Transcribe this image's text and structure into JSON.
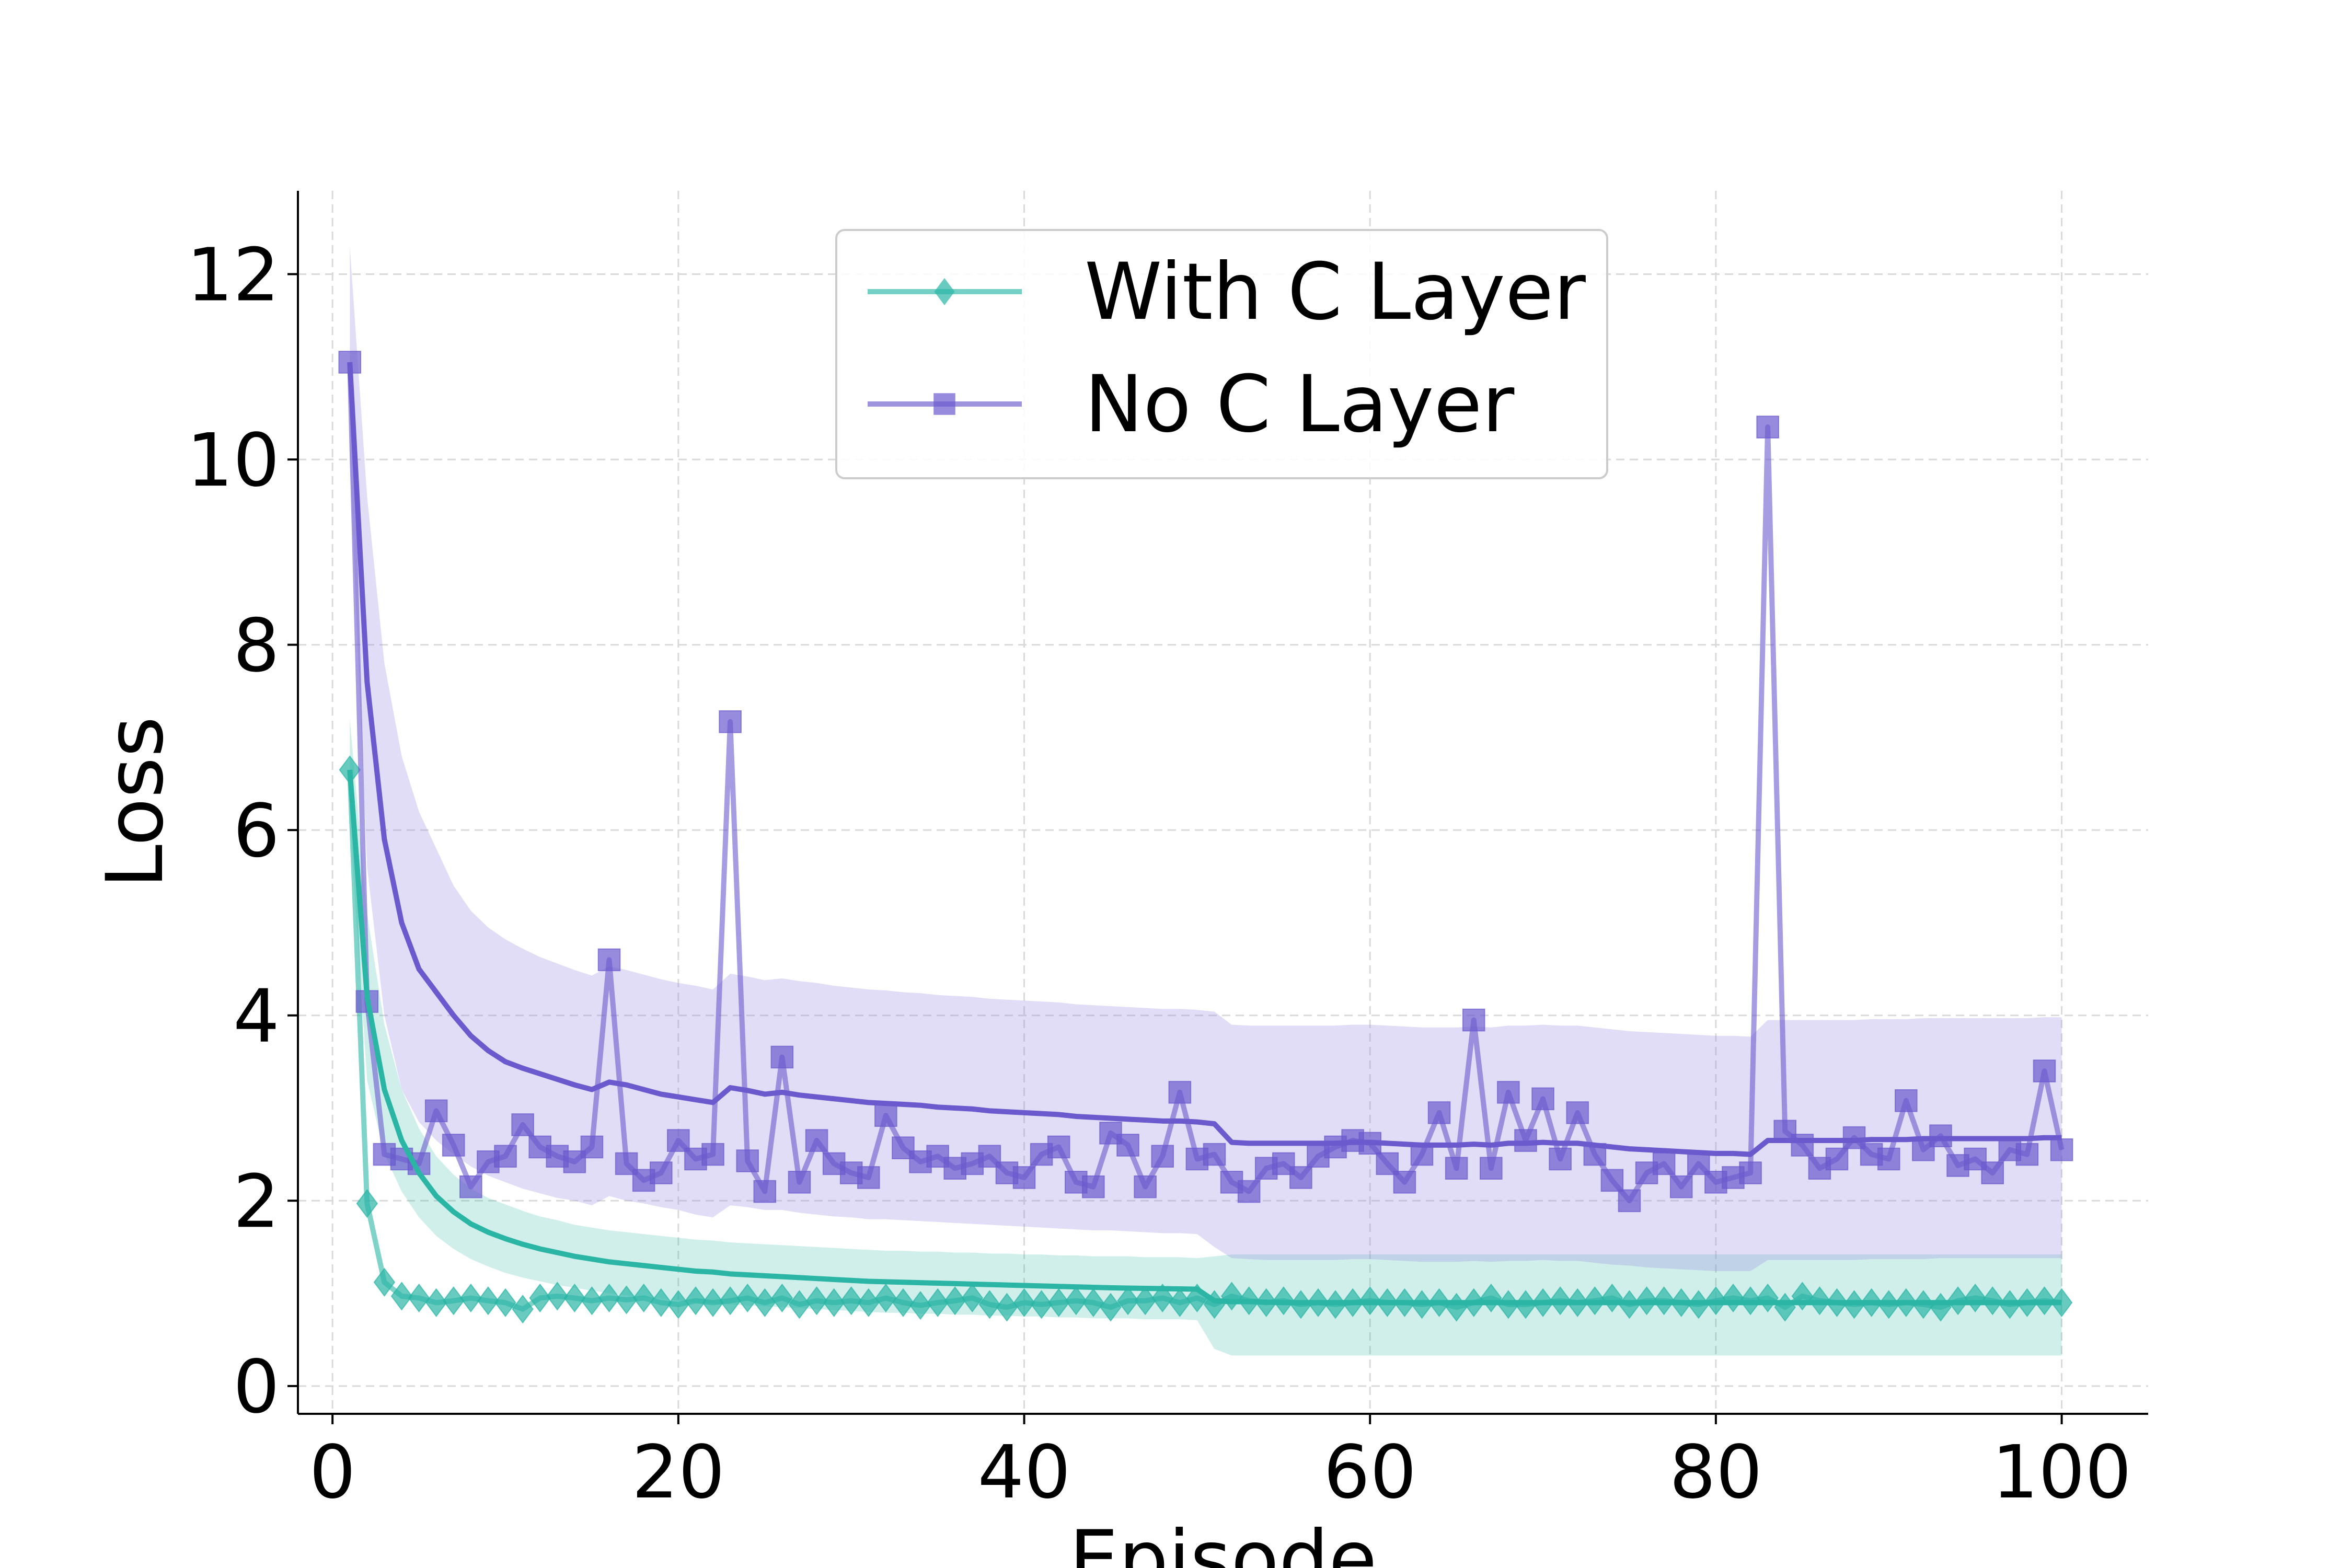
{
  "chart_data": {
    "type": "line",
    "title": "",
    "xlabel": "Episode",
    "ylabel": "Loss",
    "xlim": [
      -2,
      105
    ],
    "ylim": [
      -0.3,
      12.9
    ],
    "xticks": [
      0,
      20,
      40,
      60,
      80,
      100
    ],
    "yticks": [
      0,
      2,
      4,
      6,
      8,
      10,
      12
    ],
    "grid": true,
    "legend_position": "top-center",
    "colors": {
      "with_c": "#2ab5a5",
      "no_c": "#6a5acd",
      "with_c_band": "#2ab5a5",
      "no_c_band": "#9b8fe0"
    },
    "series": [
      {
        "name": "With C Layer",
        "marker": "diamond",
        "x": [
          1,
          2,
          3,
          4,
          5,
          6,
          7,
          8,
          9,
          10,
          11,
          12,
          13,
          14,
          15,
          16,
          17,
          18,
          19,
          20,
          21,
          22,
          23,
          24,
          25,
          26,
          27,
          28,
          29,
          30,
          31,
          32,
          33,
          34,
          35,
          36,
          37,
          38,
          39,
          40,
          41,
          42,
          43,
          44,
          45,
          46,
          47,
          48,
          49,
          50,
          51,
          52,
          53,
          54,
          55,
          56,
          57,
          58,
          59,
          60,
          61,
          62,
          63,
          64,
          65,
          66,
          67,
          68,
          69,
          70,
          71,
          72,
          73,
          74,
          75,
          76,
          77,
          78,
          79,
          80,
          81,
          82,
          83,
          84,
          85,
          86,
          87,
          88,
          89,
          90,
          91,
          92,
          93,
          94,
          95,
          96,
          97,
          98,
          99,
          100
        ],
        "values": [
          6.65,
          1.97,
          1.12,
          0.97,
          0.95,
          0.9,
          0.92,
          0.95,
          0.92,
          0.9,
          0.83,
          0.95,
          0.97,
          0.95,
          0.92,
          0.95,
          0.93,
          0.95,
          0.9,
          0.88,
          0.92,
          0.9,
          0.92,
          0.95,
          0.9,
          0.95,
          0.88,
          0.92,
          0.9,
          0.92,
          0.9,
          0.95,
          0.9,
          0.87,
          0.9,
          0.92,
          0.95,
          0.88,
          0.85,
          0.9,
          0.88,
          0.9,
          0.92,
          0.9,
          0.85,
          0.92,
          0.92,
          0.95,
          0.9,
          0.95,
          0.88,
          0.97,
          0.92,
          0.9,
          0.92,
          0.88,
          0.9,
          0.88,
          0.9,
          0.92,
          0.9,
          0.9,
          0.88,
          0.9,
          0.85,
          0.9,
          0.95,
          0.88,
          0.88,
          0.9,
          0.92,
          0.9,
          0.92,
          0.95,
          0.88,
          0.92,
          0.92,
          0.9,
          0.88,
          0.92,
          0.95,
          0.92,
          0.95,
          0.85,
          0.97,
          0.92,
          0.9,
          0.88,
          0.9,
          0.88,
          0.9,
          0.88,
          0.85,
          0.92,
          0.95,
          0.92,
          0.88,
          0.9,
          0.92,
          0.9
        ],
        "smoothed": [
          6.65,
          4.2,
          3.2,
          2.65,
          2.3,
          2.05,
          1.88,
          1.75,
          1.66,
          1.59,
          1.53,
          1.48,
          1.44,
          1.4,
          1.37,
          1.34,
          1.32,
          1.3,
          1.28,
          1.26,
          1.24,
          1.23,
          1.21,
          1.2,
          1.19,
          1.18,
          1.17,
          1.16,
          1.15,
          1.14,
          1.13,
          1.125,
          1.12,
          1.115,
          1.11,
          1.105,
          1.1,
          1.095,
          1.09,
          1.085,
          1.08,
          1.075,
          1.07,
          1.065,
          1.06,
          1.057,
          1.054,
          1.051,
          1.048,
          1.045,
          0.92,
          0.91,
          0.91,
          0.905,
          0.9,
          0.9,
          0.9,
          0.9,
          0.9,
          0.9,
          0.9,
          0.9,
          0.9,
          0.9,
          0.9,
          0.9,
          0.9,
          0.9,
          0.9,
          0.9,
          0.9,
          0.9,
          0.9,
          0.9,
          0.9,
          0.9,
          0.9,
          0.9,
          0.9,
          0.9,
          0.9,
          0.9,
          0.9,
          0.9,
          0.9,
          0.9,
          0.9,
          0.9,
          0.9,
          0.9,
          0.9,
          0.9,
          0.9,
          0.9,
          0.9,
          0.9,
          0.9,
          0.9,
          0.9,
          0.9
        ],
        "band_lower": [
          6.1,
          3.3,
          2.5,
          2.1,
          1.82,
          1.62,
          1.48,
          1.37,
          1.29,
          1.22,
          1.17,
          1.13,
          1.09,
          1.06,
          1.03,
          1.0,
          0.98,
          0.96,
          0.94,
          0.92,
          0.9,
          0.89,
          0.88,
          0.87,
          0.86,
          0.85,
          0.84,
          0.83,
          0.82,
          0.81,
          0.8,
          0.79,
          0.79,
          0.78,
          0.78,
          0.77,
          0.77,
          0.76,
          0.76,
          0.75,
          0.75,
          0.74,
          0.74,
          0.73,
          0.73,
          0.73,
          0.72,
          0.72,
          0.72,
          0.71,
          0.4,
          0.33,
          0.33,
          0.33,
          0.33,
          0.33,
          0.33,
          0.33,
          0.33,
          0.33,
          0.33,
          0.33,
          0.33,
          0.33,
          0.33,
          0.33,
          0.33,
          0.33,
          0.33,
          0.33,
          0.33,
          0.33,
          0.33,
          0.33,
          0.33,
          0.33,
          0.33,
          0.33,
          0.33,
          0.33,
          0.33,
          0.33,
          0.33,
          0.33,
          0.33,
          0.33,
          0.33,
          0.33,
          0.33,
          0.33,
          0.33,
          0.33,
          0.33,
          0.33,
          0.33,
          0.33,
          0.33,
          0.33,
          0.33,
          0.33
        ],
        "band_upper": [
          7.2,
          5.1,
          3.9,
          3.2,
          2.78,
          2.48,
          2.28,
          2.13,
          2.03,
          1.96,
          1.89,
          1.83,
          1.79,
          1.74,
          1.71,
          1.68,
          1.66,
          1.64,
          1.62,
          1.6,
          1.58,
          1.57,
          1.55,
          1.54,
          1.53,
          1.52,
          1.51,
          1.5,
          1.49,
          1.48,
          1.47,
          1.46,
          1.46,
          1.45,
          1.45,
          1.44,
          1.44,
          1.43,
          1.43,
          1.42,
          1.42,
          1.41,
          1.41,
          1.4,
          1.4,
          1.4,
          1.39,
          1.39,
          1.39,
          1.38,
          1.4,
          1.42,
          1.42,
          1.42,
          1.42,
          1.42,
          1.42,
          1.42,
          1.42,
          1.42,
          1.42,
          1.42,
          1.42,
          1.42,
          1.42,
          1.42,
          1.42,
          1.42,
          1.42,
          1.42,
          1.42,
          1.42,
          1.42,
          1.42,
          1.42,
          1.42,
          1.42,
          1.42,
          1.42,
          1.42,
          1.42,
          1.42,
          1.42,
          1.42,
          1.42,
          1.42,
          1.42,
          1.42,
          1.42,
          1.42,
          1.42,
          1.42,
          1.42,
          1.42,
          1.42,
          1.42,
          1.42,
          1.42,
          1.42,
          1.42
        ]
      },
      {
        "name": "No C Layer",
        "marker": "square",
        "x": [
          1,
          2,
          3,
          4,
          5,
          6,
          7,
          8,
          9,
          10,
          11,
          12,
          13,
          14,
          15,
          16,
          17,
          18,
          19,
          20,
          21,
          22,
          23,
          24,
          25,
          26,
          27,
          28,
          29,
          30,
          31,
          32,
          33,
          34,
          35,
          36,
          37,
          38,
          39,
          40,
          41,
          42,
          43,
          44,
          45,
          46,
          47,
          48,
          49,
          50,
          51,
          52,
          53,
          54,
          55,
          56,
          57,
          58,
          59,
          60,
          61,
          62,
          63,
          64,
          65,
          66,
          67,
          68,
          69,
          70,
          71,
          72,
          73,
          74,
          75,
          76,
          77,
          78,
          79,
          80,
          81,
          82,
          83,
          84,
          85,
          86,
          87,
          88,
          89,
          90,
          91,
          92,
          93,
          94,
          95,
          96,
          97,
          98,
          99,
          100
        ],
        "values": [
          11.05,
          4.15,
          2.5,
          2.45,
          2.4,
          2.97,
          2.6,
          2.15,
          2.42,
          2.48,
          2.82,
          2.58,
          2.48,
          2.42,
          2.58,
          4.6,
          2.4,
          2.22,
          2.3,
          2.65,
          2.45,
          2.5,
          7.17,
          2.43,
          2.1,
          3.55,
          2.2,
          2.65,
          2.4,
          2.3,
          2.25,
          2.92,
          2.57,
          2.42,
          2.48,
          2.35,
          2.4,
          2.48,
          2.3,
          2.25,
          2.5,
          2.58,
          2.2,
          2.15,
          2.73,
          2.6,
          2.15,
          2.48,
          3.17,
          2.45,
          2.5,
          2.2,
          2.1,
          2.35,
          2.4,
          2.25,
          2.48,
          2.58,
          2.65,
          2.62,
          2.4,
          2.2,
          2.5,
          2.95,
          2.35,
          3.95,
          2.35,
          3.17,
          2.65,
          3.1,
          2.45,
          2.95,
          2.5,
          2.22,
          2.0,
          2.3,
          2.4,
          2.15,
          2.4,
          2.2,
          2.25,
          2.3,
          10.35,
          2.75,
          2.6,
          2.35,
          2.45,
          2.68,
          2.5,
          2.45,
          3.08,
          2.55,
          2.7,
          2.38,
          2.45,
          2.3,
          2.55,
          2.5,
          3.4,
          2.55
        ],
        "smoothed": [
          11.05,
          7.6,
          5.9,
          5.0,
          4.5,
          4.25,
          4.0,
          3.78,
          3.62,
          3.5,
          3.43,
          3.37,
          3.31,
          3.25,
          3.2,
          3.28,
          3.25,
          3.2,
          3.15,
          3.12,
          3.09,
          3.06,
          3.22,
          3.19,
          3.15,
          3.17,
          3.14,
          3.12,
          3.1,
          3.08,
          3.06,
          3.05,
          3.04,
          3.03,
          3.01,
          3.0,
          2.99,
          2.97,
          2.96,
          2.95,
          2.94,
          2.93,
          2.91,
          2.9,
          2.89,
          2.88,
          2.87,
          2.86,
          2.86,
          2.85,
          2.83,
          2.63,
          2.62,
          2.62,
          2.62,
          2.62,
          2.62,
          2.62,
          2.63,
          2.63,
          2.62,
          2.61,
          2.6,
          2.6,
          2.6,
          2.61,
          2.6,
          2.62,
          2.62,
          2.63,
          2.62,
          2.62,
          2.6,
          2.58,
          2.56,
          2.55,
          2.54,
          2.53,
          2.52,
          2.51,
          2.51,
          2.5,
          2.65,
          2.65,
          2.65,
          2.65,
          2.65,
          2.65,
          2.66,
          2.66,
          2.66,
          2.67,
          2.67,
          2.67,
          2.67,
          2.67,
          2.67,
          2.67,
          2.68,
          2.68
        ],
        "band_lower": [
          10.0,
          5.6,
          4.0,
          3.2,
          2.85,
          2.65,
          2.5,
          2.37,
          2.27,
          2.2,
          2.13,
          2.08,
          2.03,
          2.0,
          1.95,
          2.05,
          2.0,
          1.97,
          1.93,
          1.9,
          1.85,
          1.82,
          1.95,
          1.93,
          1.9,
          1.9,
          1.87,
          1.85,
          1.83,
          1.82,
          1.8,
          1.8,
          1.79,
          1.78,
          1.77,
          1.76,
          1.75,
          1.74,
          1.73,
          1.72,
          1.71,
          1.7,
          1.69,
          1.68,
          1.68,
          1.67,
          1.66,
          1.65,
          1.65,
          1.64,
          1.5,
          1.38,
          1.37,
          1.36,
          1.36,
          1.36,
          1.36,
          1.36,
          1.37,
          1.37,
          1.36,
          1.35,
          1.34,
          1.34,
          1.34,
          1.35,
          1.34,
          1.35,
          1.35,
          1.36,
          1.35,
          1.35,
          1.33,
          1.31,
          1.3,
          1.28,
          1.27,
          1.26,
          1.25,
          1.24,
          1.24,
          1.24,
          1.36,
          1.36,
          1.36,
          1.36,
          1.36,
          1.36,
          1.37,
          1.37,
          1.37,
          1.37,
          1.38,
          1.38,
          1.38,
          1.38,
          1.38,
          1.38,
          1.38,
          1.38
        ],
        "band_upper": [
          12.3,
          9.6,
          7.8,
          6.8,
          6.2,
          5.8,
          5.4,
          5.13,
          4.95,
          4.82,
          4.72,
          4.63,
          4.56,
          4.49,
          4.43,
          4.53,
          4.49,
          4.44,
          4.39,
          4.35,
          4.32,
          4.28,
          4.45,
          4.42,
          4.38,
          4.4,
          4.37,
          4.35,
          4.32,
          4.3,
          4.28,
          4.27,
          4.25,
          4.24,
          4.22,
          4.21,
          4.2,
          4.18,
          4.17,
          4.16,
          4.15,
          4.14,
          4.12,
          4.11,
          4.1,
          4.09,
          4.08,
          4.07,
          4.07,
          4.06,
          4.04,
          3.9,
          3.89,
          3.89,
          3.89,
          3.89,
          3.89,
          3.89,
          3.9,
          3.9,
          3.89,
          3.88,
          3.87,
          3.87,
          3.87,
          3.88,
          3.87,
          3.89,
          3.89,
          3.9,
          3.89,
          3.89,
          3.87,
          3.85,
          3.83,
          3.82,
          3.81,
          3.8,
          3.79,
          3.78,
          3.78,
          3.77,
          3.95,
          3.95,
          3.95,
          3.95,
          3.95,
          3.95,
          3.96,
          3.96,
          3.96,
          3.97,
          3.97,
          3.97,
          3.97,
          3.97,
          3.97,
          3.97,
          3.98,
          3.98
        ]
      }
    ]
  }
}
